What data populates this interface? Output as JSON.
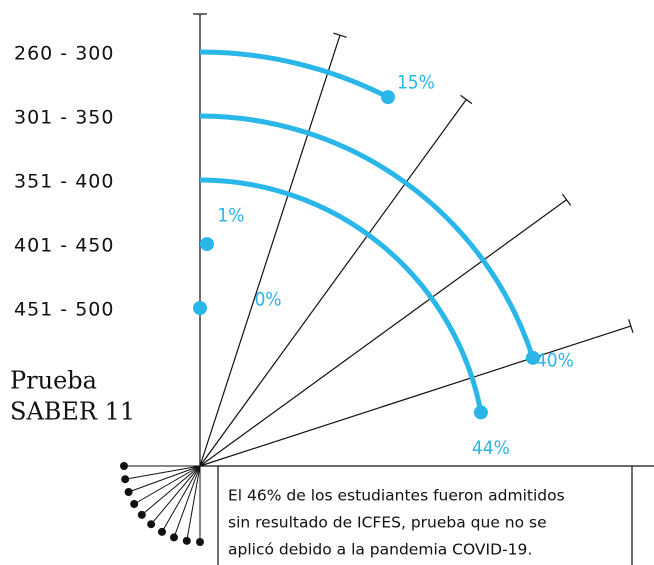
{
  "chart_data": {
    "type": "radial_bar",
    "title": [
      "Prueba",
      "SABER 11"
    ],
    "categories": [
      "260 - 300",
      "301 - 350",
      "351 - 400",
      "401 - 450",
      "451 - 500"
    ],
    "values": [
      15,
      0,
      1,
      40,
      44
    ],
    "value_labels": [
      "15%",
      "0%",
      "1%",
      "40%",
      "44%"
    ],
    "order": [
      0,
      3,
      4,
      2,
      1
    ],
    "color": "#29b6e8",
    "angle_lim": [
      0,
      100
    ],
    "angle_ticks": [
      10,
      20,
      30,
      40
    ],
    "annotation": [
      "El 46% de los estudiantes fueron admitidos",
      "sin resultado de ICFES, prueba que no se",
      "aplicó debido a la pandemia COVID-19."
    ]
  }
}
